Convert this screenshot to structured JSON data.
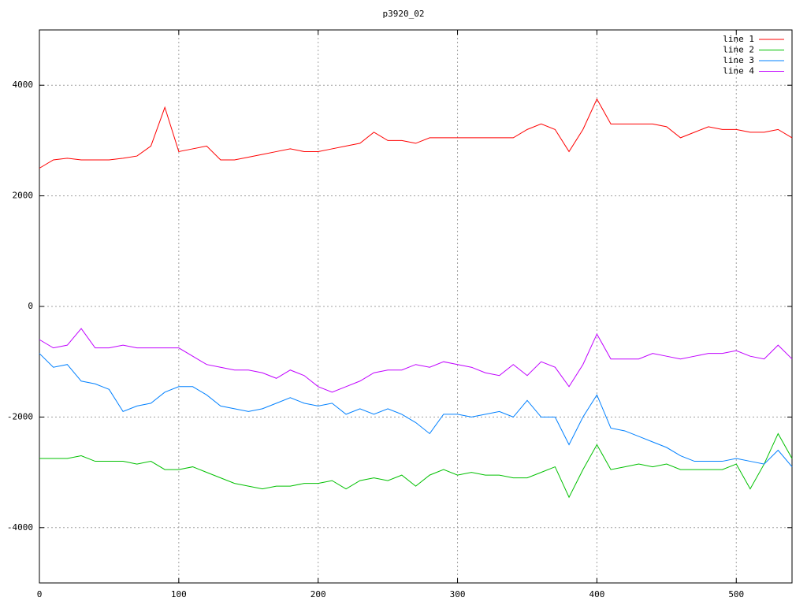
{
  "chart_data": {
    "type": "line",
    "title": "p3920_02",
    "x": [
      0,
      10,
      20,
      30,
      40,
      50,
      60,
      70,
      80,
      90,
      100,
      110,
      120,
      130,
      140,
      150,
      160,
      170,
      180,
      190,
      200,
      210,
      220,
      230,
      240,
      250,
      260,
      270,
      280,
      290,
      300,
      310,
      320,
      330,
      340,
      350,
      360,
      370,
      380,
      390,
      400,
      410,
      420,
      430,
      440,
      450,
      460,
      470,
      480,
      490,
      500,
      510,
      520,
      530,
      540
    ],
    "series": [
      {
        "name": "line 1",
        "color": "#ff0000",
        "values": [
          2500,
          2650,
          2680,
          2650,
          2650,
          2650,
          2680,
          2720,
          2900,
          3600,
          2800,
          2850,
          2900,
          2650,
          2650,
          2700,
          2750,
          2800,
          2850,
          2800,
          2800,
          2850,
          2900,
          2950,
          3150,
          3000,
          3000,
          2950,
          3050,
          3050,
          3050,
          3050,
          3050,
          3050,
          3050,
          3200,
          3300,
          3200,
          2800,
          3200,
          3750,
          3300,
          3300,
          3300,
          3300,
          3250,
          3050,
          3150,
          3250,
          3200,
          3200,
          3150,
          3150,
          3200,
          3050
        ]
      },
      {
        "name": "line 2",
        "color": "#00c000",
        "values": [
          -2750,
          -2750,
          -2750,
          -2700,
          -2800,
          -2800,
          -2800,
          -2850,
          -2800,
          -2950,
          -2950,
          -2900,
          -3000,
          -3100,
          -3200,
          -3250,
          -3300,
          -3250,
          -3250,
          -3200,
          -3200,
          -3150,
          -3300,
          -3150,
          -3100,
          -3150,
          -3050,
          -3250,
          -3050,
          -2950,
          -3050,
          -3000,
          -3050,
          -3050,
          -3100,
          -3100,
          -3000,
          -2900,
          -3450,
          -2950,
          -2500,
          -2950,
          -2900,
          -2850,
          -2900,
          -2850,
          -2950,
          -2950,
          -2950,
          -2950,
          -2850,
          -3300,
          -2850,
          -2300,
          -2750
        ]
      },
      {
        "name": "line 3",
        "color": "#0080ff",
        "values": [
          -850,
          -1100,
          -1050,
          -1350,
          -1400,
          -1500,
          -1900,
          -1800,
          -1750,
          -1550,
          -1450,
          -1450,
          -1600,
          -1800,
          -1850,
          -1900,
          -1850,
          -1750,
          -1650,
          -1750,
          -1800,
          -1750,
          -1950,
          -1850,
          -1950,
          -1850,
          -1950,
          -2100,
          -2300,
          -1950,
          -1950,
          -2000,
          -1950,
          -1900,
          -2000,
          -1700,
          -2000,
          -2000,
          -2500,
          -2000,
          -1600,
          -2200,
          -2250,
          -2350,
          -2450,
          -2550,
          -2700,
          -2800,
          -2800,
          -2800,
          -2750,
          -2800,
          -2850,
          -2600,
          -2900
        ]
      },
      {
        "name": "line 4",
        "color": "#c000ff",
        "values": [
          -600,
          -750,
          -700,
          -400,
          -750,
          -750,
          -700,
          -750,
          -750,
          -750,
          -750,
          -900,
          -1050,
          -1100,
          -1150,
          -1150,
          -1200,
          -1300,
          -1150,
          -1250,
          -1450,
          -1550,
          -1450,
          -1350,
          -1200,
          -1150,
          -1150,
          -1050,
          -1100,
          -1000,
          -1050,
          -1100,
          -1200,
          -1250,
          -1050,
          -1250,
          -1000,
          -1100,
          -1450,
          -1050,
          -500,
          -950,
          -950,
          -950,
          -850,
          -900,
          -950,
          -900,
          -850,
          -850,
          -800,
          -900,
          -950,
          -700,
          -950
        ]
      }
    ],
    "xlim": [
      0,
      540
    ],
    "xticks": [
      0,
      100,
      200,
      300,
      400,
      500
    ],
    "ylim": [
      -5000,
      5000
    ],
    "yticks": [
      -4000,
      -2000,
      0,
      2000,
      4000
    ],
    "grid": true,
    "legend": "top-right"
  }
}
